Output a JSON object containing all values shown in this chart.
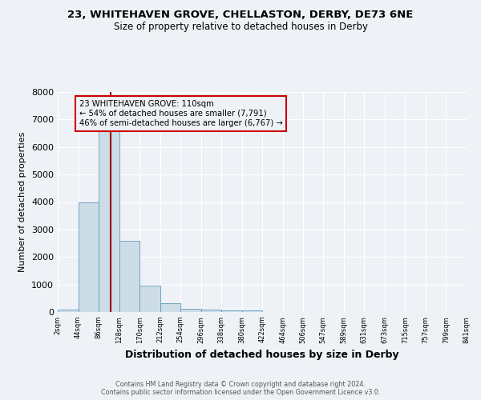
{
  "title_line1": "23, WHITEHAVEN GROVE, CHELLASTON, DERBY, DE73 6NE",
  "title_line2": "Size of property relative to detached houses in Derby",
  "xlabel": "Distribution of detached houses by size in Derby",
  "ylabel": "Number of detached properties",
  "bar_edges": [
    2,
    44,
    86,
    128,
    170,
    212,
    254,
    296,
    338,
    380,
    422,
    464,
    506,
    547,
    589,
    631,
    673,
    715,
    757,
    799,
    841
  ],
  "bar_heights": [
    80,
    4000,
    6600,
    2600,
    960,
    310,
    130,
    90,
    60,
    60,
    0,
    0,
    0,
    0,
    0,
    0,
    0,
    0,
    0,
    0
  ],
  "bar_color": "#ccdde8",
  "bar_edge_color": "#6699bb",
  "vline_x": 110,
  "vline_color": "#990000",
  "annotation_text_line1": "23 WHITEHAVEN GROVE: 110sqm",
  "annotation_text_line2": "← 54% of detached houses are smaller (7,791)",
  "annotation_text_line3": "46% of semi-detached houses are larger (6,767) →",
  "annotation_box_color": "#cc0000",
  "ylim": [
    0,
    8000
  ],
  "tick_labels": [
    "2sqm",
    "44sqm",
    "86sqm",
    "128sqm",
    "170sqm",
    "212sqm",
    "254sqm",
    "296sqm",
    "338sqm",
    "380sqm",
    "422sqm",
    "464sqm",
    "506sqm",
    "547sqm",
    "589sqm",
    "631sqm",
    "673sqm",
    "715sqm",
    "757sqm",
    "799sqm",
    "841sqm"
  ],
  "footer_line1": "Contains HM Land Registry data © Crown copyright and database right 2024.",
  "footer_line2": "Contains public sector information licensed under the Open Government Licence v3.0.",
  "background_color": "#eef2f7",
  "grid_color": "#ffffff"
}
